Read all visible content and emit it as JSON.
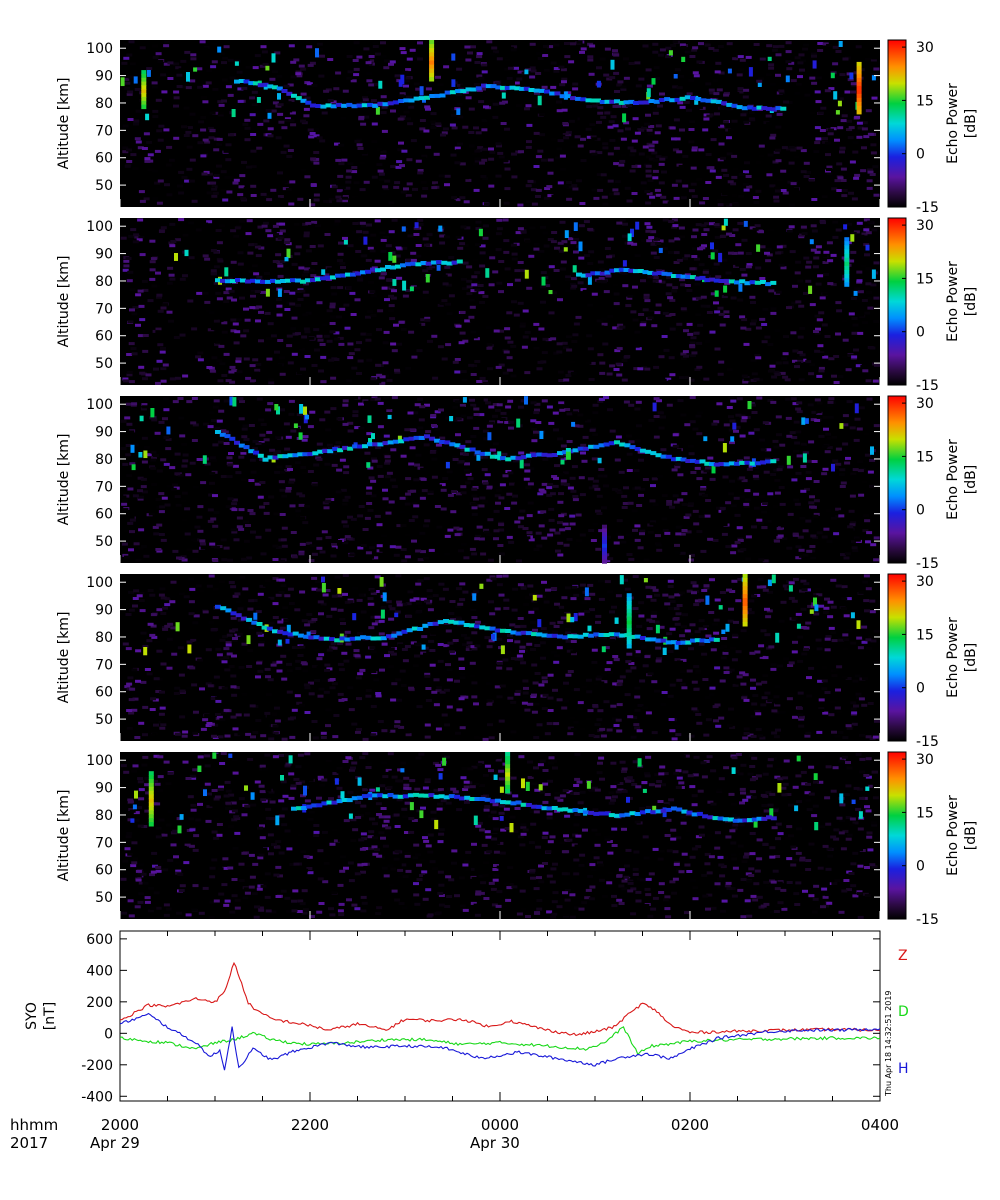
{
  "chart_data": [
    {
      "type": "heatmap",
      "panel": 1,
      "ylabel": "Altitude [km]",
      "yticks": [
        50,
        60,
        70,
        80,
        90,
        100
      ],
      "ylim": [
        42,
        103
      ],
      "colorbar": {
        "label": "Echo Power",
        "unit": "[dB]",
        "ticks": [
          30,
          15,
          0,
          -15
        ],
        "range": [
          -15,
          32
        ]
      },
      "echo_layers": [
        {
          "x_hours": [
            1.2,
            1.6,
            2.0,
            2.6,
            3.2,
            3.8,
            4.3,
            4.9,
            5.4,
            6.0,
            6.6,
            7.0
          ],
          "y_km": [
            88,
            86,
            79,
            79,
            82,
            86,
            85,
            81,
            80,
            82,
            78,
            78
          ]
        }
      ],
      "vertical_streaks": [
        {
          "x_hours": 0.25,
          "y_from": 78,
          "y_to": 92,
          "peak_db": 22
        },
        {
          "x_hours": 3.28,
          "y_from": 88,
          "y_to": 103,
          "peak_db": 26
        },
        {
          "x_hours": 7.78,
          "y_from": 76,
          "y_to": 95,
          "peak_db": 30
        }
      ]
    },
    {
      "type": "heatmap",
      "panel": 2,
      "ylabel": "Altitude [km]",
      "yticks": [
        50,
        60,
        70,
        80,
        90,
        100
      ],
      "ylim": [
        42,
        103
      ],
      "colorbar": {
        "label": "Echo Power",
        "unit": "[dB]",
        "ticks": [
          30,
          15,
          0,
          -15
        ],
        "range": [
          -15,
          32
        ]
      },
      "echo_layers": [
        {
          "x_hours": [
            1.0,
            2.0,
            3.0,
            3.6
          ],
          "y_km": [
            80,
            80,
            86,
            87
          ]
        },
        {
          "x_hours": [
            4.8,
            5.3,
            5.8,
            6.3,
            6.9
          ],
          "y_km": [
            82,
            84,
            82,
            80,
            79
          ]
        }
      ],
      "vertical_streaks": [
        {
          "x_hours": 7.65,
          "y_from": 78,
          "y_to": 96,
          "peak_db": 12
        }
      ]
    },
    {
      "type": "heatmap",
      "panel": 3,
      "ylabel": "Altitude [km]",
      "yticks": [
        50,
        60,
        70,
        80,
        90,
        100
      ],
      "ylim": [
        42,
        103
      ],
      "colorbar": {
        "label": "Echo Power",
        "unit": "[dB]",
        "ticks": [
          30,
          15,
          0,
          -15
        ],
        "range": [
          -15,
          32
        ]
      },
      "echo_layers": [
        {
          "x_hours": [
            1.0,
            1.5,
            2.6,
            3.2,
            4.0,
            4.6,
            5.2,
            5.8,
            6.3,
            6.9
          ],
          "y_km": [
            90,
            80,
            85,
            88,
            80,
            82,
            86,
            80,
            78,
            79
          ]
        }
      ],
      "vertical_streaks": [
        {
          "x_hours": 4.72,
          "y_from": 80,
          "y_to": 84,
          "peak_db": 18
        },
        {
          "x_hours": 5.1,
          "y_from": 42,
          "y_to": 56,
          "peak_db": 0
        }
      ]
    },
    {
      "type": "heatmap",
      "panel": 4,
      "ylabel": "Altitude [km]",
      "yticks": [
        50,
        60,
        70,
        80,
        90,
        100
      ],
      "ylim": [
        42,
        103
      ],
      "colorbar": {
        "label": "Echo Power",
        "unit": "[dB]",
        "ticks": [
          30,
          15,
          0,
          -15
        ],
        "range": [
          -15,
          32
        ]
      },
      "echo_layers": [
        {
          "x_hours": [
            1.0,
            1.6,
            2.2,
            2.8,
            3.4,
            4.0,
            4.6,
            5.2,
            5.8,
            6.3
          ],
          "y_km": [
            91,
            82,
            79,
            80,
            86,
            82,
            80,
            81,
            78,
            79
          ]
        }
      ],
      "vertical_streaks": [
        {
          "x_hours": 6.58,
          "y_from": 84,
          "y_to": 103,
          "peak_db": 28
        },
        {
          "x_hours": 5.36,
          "y_from": 76,
          "y_to": 96,
          "peak_db": 14
        }
      ]
    },
    {
      "type": "heatmap",
      "panel": 5,
      "ylabel": "Altitude [km]",
      "yticks": [
        50,
        60,
        70,
        80,
        90,
        100
      ],
      "ylim": [
        42,
        103
      ],
      "colorbar": {
        "label": "Echo Power",
        "unit": "[dB]",
        "ticks": [
          30,
          15,
          0,
          -15
        ],
        "range": [
          -15,
          32
        ]
      },
      "echo_layers": [
        {
          "x_hours": [
            1.8,
            2.6,
            3.3,
            4.0,
            4.6,
            5.2,
            5.8,
            6.4,
            6.9
          ],
          "y_km": [
            82,
            87,
            87,
            85,
            82,
            80,
            82,
            78,
            79
          ]
        }
      ],
      "vertical_streaks": [
        {
          "x_hours": 4.08,
          "y_from": 88,
          "y_to": 103,
          "peak_db": 20
        },
        {
          "x_hours": 0.33,
          "y_from": 76,
          "y_to": 96,
          "peak_db": 22
        }
      ]
    },
    {
      "type": "line",
      "panel": 6,
      "ylabel": "SYO",
      "yunit": "[nT]",
      "ylim": [
        -430,
        650
      ],
      "yticks": [
        600,
        400,
        200,
        0,
        -200,
        -400
      ],
      "xlim": [
        0,
        8
      ],
      "x_unit": "hours after 2000 UT Apr 29",
      "series": [
        {
          "name": "Z",
          "color": "#d81818",
          "x": [
            0,
            0.3,
            0.5,
            0.8,
            1.0,
            1.1,
            1.2,
            1.28,
            1.35,
            1.45,
            1.6,
            1.8,
            2.0,
            2.2,
            2.5,
            2.8,
            3.0,
            3.3,
            3.6,
            3.9,
            4.1,
            4.3,
            4.5,
            4.8,
            5.0,
            5.2,
            5.35,
            5.5,
            5.65,
            5.8,
            6.0,
            6.3,
            6.6,
            7.0,
            7.5,
            8.0
          ],
          "y": [
            80,
            180,
            170,
            220,
            200,
            260,
            450,
            320,
            190,
            140,
            90,
            70,
            50,
            20,
            60,
            20,
            90,
            80,
            90,
            40,
            80,
            50,
            20,
            -10,
            10,
            40,
            120,
            190,
            140,
            50,
            5,
            10,
            15,
            20,
            25,
            20
          ]
        },
        {
          "name": "D",
          "color": "#18d818",
          "x": [
            0,
            0.3,
            0.5,
            0.8,
            1.0,
            1.2,
            1.4,
            1.6,
            1.8,
            2.0,
            2.4,
            2.8,
            3.2,
            3.6,
            4.0,
            4.5,
            4.9,
            5.1,
            5.3,
            5.45,
            5.6,
            5.75,
            6.0,
            6.5,
            7.0,
            7.5,
            8.0
          ],
          "y": [
            -30,
            -50,
            -60,
            -100,
            -60,
            -40,
            0,
            -40,
            -60,
            -70,
            -60,
            -40,
            -40,
            -70,
            -60,
            -80,
            -100,
            -60,
            40,
            -130,
            -80,
            -70,
            -50,
            -40,
            -35,
            -30,
            -30
          ]
        },
        {
          "name": "H",
          "color": "#1818d8",
          "x": [
            0,
            0.3,
            0.5,
            0.8,
            0.95,
            1.05,
            1.1,
            1.18,
            1.25,
            1.4,
            1.6,
            1.8,
            2.0,
            2.2,
            2.6,
            3.0,
            3.4,
            3.8,
            4.2,
            4.6,
            5.0,
            5.3,
            5.55,
            5.8,
            6.0,
            6.3,
            6.8,
            7.2,
            7.6,
            8.0
          ],
          "y": [
            60,
            120,
            40,
            -60,
            -150,
            -110,
            -230,
            40,
            -220,
            -100,
            -170,
            -120,
            -90,
            -60,
            -90,
            -80,
            -90,
            -160,
            -120,
            -160,
            -200,
            -150,
            -130,
            -160,
            -100,
            -30,
            10,
            20,
            20,
            30
          ]
        }
      ]
    }
  ],
  "xaxis": {
    "row_label_1": "hhmm",
    "row_label_2": "2017",
    "ticks": [
      {
        "hour": 0,
        "label": "2000",
        "date": "Apr 29"
      },
      {
        "hour": 2,
        "label": "2200",
        "date": ""
      },
      {
        "hour": 4,
        "label": "0000",
        "date": "Apr 30"
      },
      {
        "hour": 6,
        "label": "0200",
        "date": ""
      },
      {
        "hour": 8,
        "label": "0400",
        "date": ""
      }
    ]
  },
  "timestamp": "Thu Apr 18 14:32:51 2019",
  "colors": {
    "background": "#ffffff",
    "panel": "#000000"
  }
}
